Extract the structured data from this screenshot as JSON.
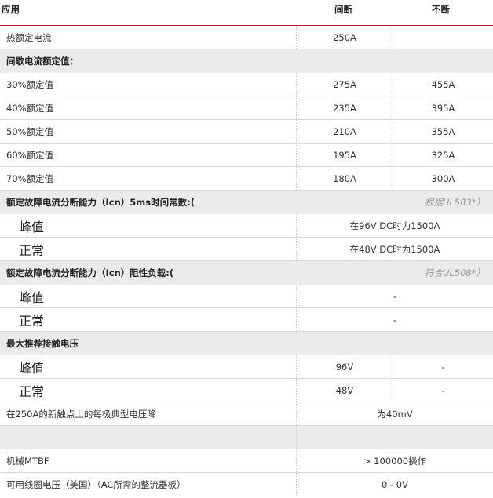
{
  "header": {
    "col1": "应用",
    "col2": "间断",
    "col3": "不断"
  },
  "rows": [
    {
      "type": "data",
      "label": "热额定电流",
      "v1": "250A",
      "v2": ""
    },
    {
      "type": "section",
      "label": "间歇电流额定值："
    },
    {
      "type": "data",
      "label": "30%额定值",
      "v1": "275A",
      "v2": "455A"
    },
    {
      "type": "data",
      "label": "40%额定值",
      "v1": "235A",
      "v2": "395A"
    },
    {
      "type": "data",
      "label": "50%额定值",
      "v1": "210A",
      "v2": "355A"
    },
    {
      "type": "data",
      "label": "60%额定值",
      "v1": "195A",
      "v2": "325A"
    },
    {
      "type": "data",
      "label": "70%额定值",
      "v1": "180A",
      "v2": "300A"
    },
    {
      "type": "section",
      "label": "额定故障电流分断能力（Icn）5ms时间常数:(",
      "note": "根据UL583*）"
    },
    {
      "type": "big-span",
      "label": "峰值",
      "value": "在96V DC时为1500A"
    },
    {
      "type": "big-span",
      "label": "正常",
      "value": "在48V DC时为1500A"
    },
    {
      "type": "section",
      "label": "额定故障电流分断能力（Icn）阻性负载:(",
      "note": "符合UL508*）"
    },
    {
      "type": "big-span",
      "label": "峰值",
      "value": "-"
    },
    {
      "type": "big-span",
      "label": "正常",
      "value": "-"
    },
    {
      "type": "section",
      "label": "最大推荐接触电压"
    },
    {
      "type": "big-data",
      "label": "峰值",
      "v1": "96V",
      "v2": "-"
    },
    {
      "type": "big-data",
      "label": "正常",
      "v1": "48V",
      "v2": "-"
    },
    {
      "type": "span",
      "label": "在250A的新触点上的每极典型电压降",
      "value": "为40mV"
    },
    {
      "type": "empty"
    },
    {
      "type": "span",
      "label": "机械MTBF",
      "value": "> 100000操作"
    },
    {
      "type": "span",
      "label": "可用线圈电压（美国）（AC所需的整流器板）",
      "value": "0 - 0V"
    }
  ]
}
